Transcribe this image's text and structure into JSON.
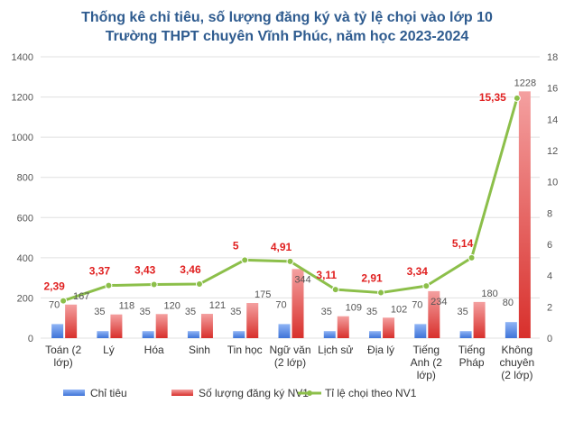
{
  "chart_data": {
    "type": "bar",
    "title": "Thống kê chỉ tiêu, số lượng đăng ký và tỷ lệ chọi vào lớp 10",
    "subtitle": "Trường THPT chuyên Vĩnh Phúc, năm học 2023-2024",
    "categories": [
      [
        "Toán (2",
        "lớp)"
      ],
      [
        "Lý"
      ],
      [
        "Hóa"
      ],
      [
        "Sinh"
      ],
      [
        "Tin học"
      ],
      [
        "Ngữ văn",
        "(2 lớp)"
      ],
      [
        "Lịch sử"
      ],
      [
        "Địa lý"
      ],
      [
        "Tiếng",
        "Anh (2",
        "lớp)"
      ],
      [
        "Tiếng",
        "Pháp"
      ],
      [
        "Không",
        "chuyên",
        "(2 lớp)"
      ]
    ],
    "series": [
      {
        "name": "Chỉ tiêu",
        "type": "bar",
        "axis": "left",
        "color": "#5b8fe8",
        "values": [
          70,
          35,
          35,
          35,
          35,
          70,
          35,
          35,
          70,
          35,
          80
        ],
        "labels": [
          "70",
          "35",
          "35",
          "35",
          "35",
          "70",
          "35",
          "35",
          "70",
          "35",
          "80"
        ]
      },
      {
        "name": "Số lượng đăng ký NV1",
        "type": "bar",
        "axis": "left",
        "color": "#e8504a",
        "values": [
          167,
          118,
          120,
          121,
          175,
          344,
          109,
          102,
          234,
          180,
          1228
        ],
        "labels": [
          "167",
          "118",
          "120",
          "121",
          "175",
          "344",
          "109",
          "102",
          "234",
          "180",
          "1228"
        ]
      },
      {
        "name": "Tỉ lệ chọi theo NV1",
        "type": "line",
        "axis": "right",
        "color": "#8cbf4a",
        "values": [
          2.39,
          3.37,
          3.43,
          3.46,
          5,
          4.91,
          3.11,
          2.91,
          3.34,
          5.14,
          15.35
        ],
        "labels": [
          "2,39",
          "3,37",
          "3,43",
          "3,46",
          "5",
          "4,91",
          "3,11",
          "2,91",
          "3,34",
          "5,14",
          "15,35"
        ]
      }
    ],
    "y_left": {
      "min": 0,
      "max": 1400,
      "ticks": [
        "0",
        "200",
        "400",
        "600",
        "800",
        "1000",
        "1200",
        "1400"
      ]
    },
    "y_right": {
      "min": 0,
      "max": 18,
      "ticks": [
        "0",
        "2",
        "4",
        "6",
        "8",
        "10",
        "12",
        "14",
        "16",
        "18"
      ]
    },
    "grid": true,
    "legend_position": "bottom",
    "colors": {
      "title": "#2e5b8f",
      "grid": "#e0e0e0",
      "axis_text": "#555555",
      "line_label": "#e02020",
      "bar_label": "#555555"
    }
  }
}
